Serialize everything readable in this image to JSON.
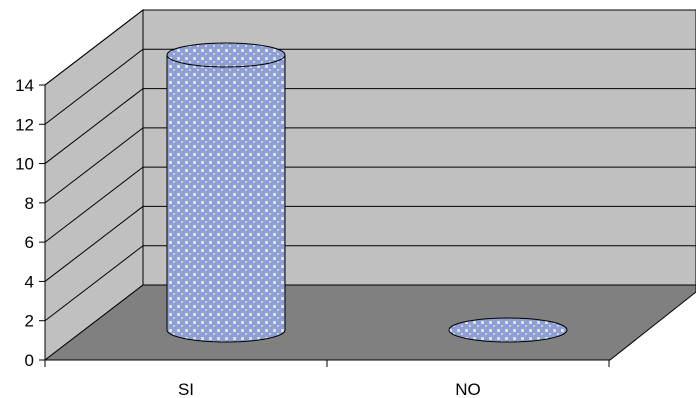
{
  "chart_data": {
    "type": "bar",
    "style": "3d-cylinder",
    "categories": [
      "SI",
      "NO"
    ],
    "values": [
      14,
      0
    ],
    "ylim": [
      0,
      14
    ],
    "yticks": [
      "0",
      "2",
      "4",
      "6",
      "8",
      "10",
      "12",
      "14"
    ],
    "grid": true,
    "legend": "none",
    "colors": {
      "bar_fill": "#8f9fd6",
      "bar_pattern_light": "#d8e6c8",
      "back_wall": "#c0c0c0",
      "side_wall": "#c0c0c0",
      "floor": "#808080",
      "axis": "#000000"
    }
  }
}
